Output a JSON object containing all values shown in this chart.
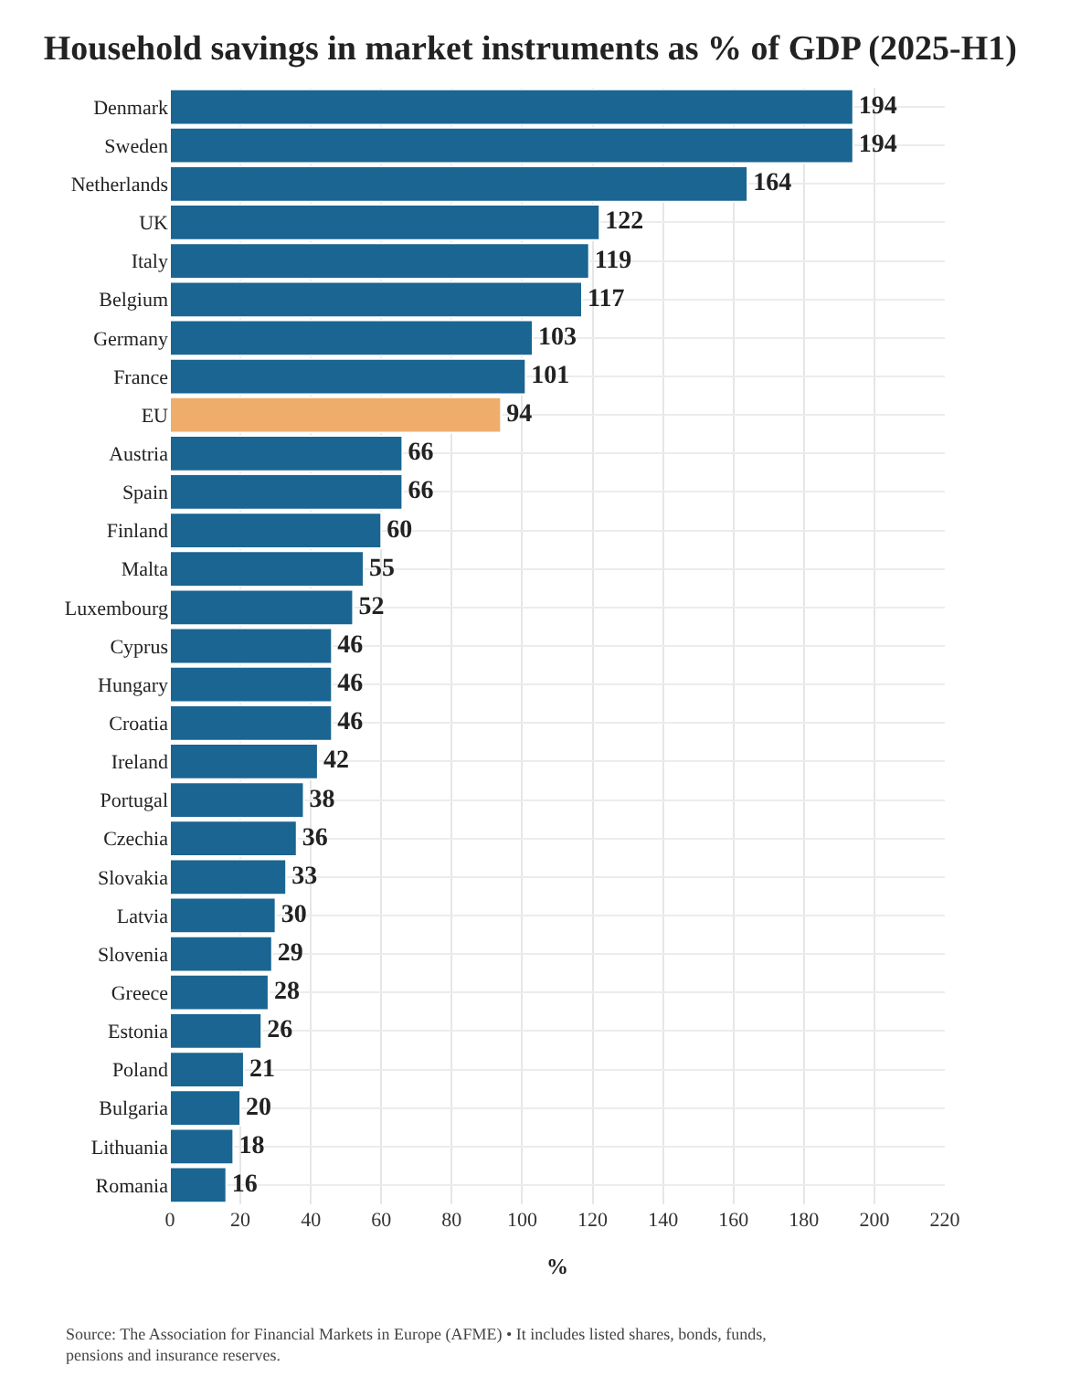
{
  "chart_data": {
    "type": "bar",
    "orientation": "horizontal",
    "title": "Household savings in market instruments as % of GDP (2025-H1)",
    "xlabel": "%",
    "categories": [
      "Denmark",
      "Sweden",
      "Netherlands",
      "UK",
      "Italy",
      "Belgium",
      "Germany",
      "France",
      "EU",
      "Austria",
      "Spain",
      "Finland",
      "Malta",
      "Luxembourg",
      "Cyprus",
      "Hungary",
      "Croatia",
      "Ireland",
      "Portugal",
      "Czechia",
      "Slovakia",
      "Latvia",
      "Slovenia",
      "Greece",
      "Estonia",
      "Poland",
      "Bulgaria",
      "Lithuania",
      "Romania"
    ],
    "values": [
      194,
      194,
      164,
      122,
      119,
      117,
      103,
      101,
      94,
      66,
      66,
      60,
      55,
      52,
      46,
      46,
      46,
      42,
      38,
      36,
      33,
      30,
      29,
      28,
      26,
      21,
      20,
      18,
      16
    ],
    "colors": [
      "#1a6591",
      "#1a6591",
      "#1a6591",
      "#1a6591",
      "#1a6591",
      "#1a6591",
      "#1a6591",
      "#1a6591",
      "#efad6b",
      "#1a6591",
      "#1a6591",
      "#1a6591",
      "#1a6591",
      "#1a6591",
      "#1a6591",
      "#1a6591",
      "#1a6591",
      "#1a6591",
      "#1a6591",
      "#1a6591",
      "#1a6591",
      "#1a6591",
      "#1a6591",
      "#1a6591",
      "#1a6591",
      "#1a6591",
      "#1a6591",
      "#1a6591",
      "#1a6591"
    ],
    "xlim": [
      0,
      220
    ],
    "xticks": [
      0,
      20,
      40,
      60,
      80,
      100,
      120,
      140,
      160,
      180,
      200,
      220
    ],
    "grid": true,
    "data_labels": true,
    "annotations": [
      "Source: The Association for Financial Markets in Europe (AFME) • It includes listed shares, bonds, funds, pensions and insurance reserves."
    ]
  }
}
